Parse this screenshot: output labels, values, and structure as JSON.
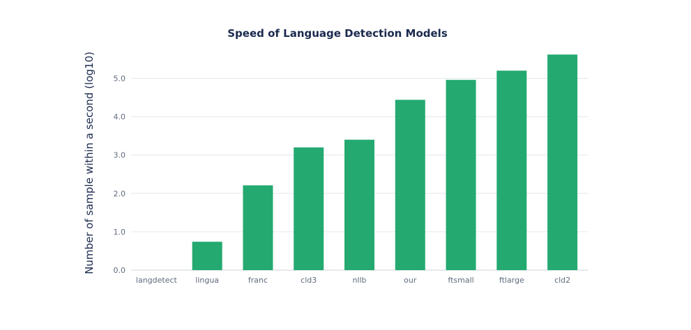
{
  "chart_data": {
    "type": "bar",
    "title": "Speed of Language Detection Models",
    "xlabel": "",
    "ylabel": "Number of sample within a second (log10)",
    "categories": [
      "langdetect",
      "lingua",
      "franc",
      "cld3",
      "nllb",
      "our",
      "ftsmall",
      "ftlarge",
      "cld2"
    ],
    "values": [
      0.0,
      0.74,
      2.21,
      3.2,
      3.4,
      4.44,
      4.96,
      5.2,
      5.62
    ],
    "ylim": [
      0,
      5.7
    ],
    "yticks": [
      "0.0",
      "1.0",
      "2.0",
      "3.0",
      "4.0",
      "5.0"
    ],
    "grid": true,
    "legend": "none",
    "bar_color": "#24a971",
    "title_color": "#1b2a4e"
  }
}
